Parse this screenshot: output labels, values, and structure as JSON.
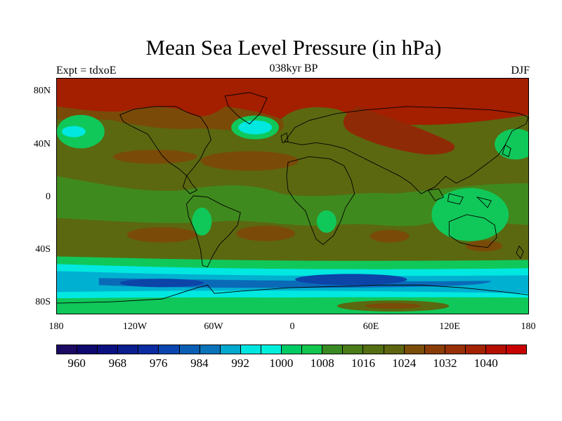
{
  "title": "Mean Sea Level Pressure (in hPa)",
  "left_label": "Expt = tdxoE",
  "center_label": "038kyr BP",
  "right_label": "DJF",
  "y_ticks": [
    "80N",
    "40N",
    "0",
    "40S",
    "80S"
  ],
  "x_ticks": [
    "180",
    "120W",
    "60W",
    "0",
    "60E",
    "120E",
    "180"
  ],
  "colorbar": {
    "colors": [
      "#1d0a63",
      "#0e086f",
      "#0b1080",
      "#0a1d8f",
      "#0a2ba2",
      "#0b46b0",
      "#0a5fb5",
      "#0a73b9",
      "#00a9cf",
      "#00e5df",
      "#00f0dc",
      "#00cc66",
      "#13c64f",
      "#3a8a24",
      "#4a7c19",
      "#546f13",
      "#5d6510",
      "#7a4e08",
      "#8a3c06",
      "#973006",
      "#a32200",
      "#b50f00",
      "#c80000"
    ],
    "labels": [
      "960",
      "968",
      "976",
      "984",
      "992",
      "1000",
      "1008",
      "1016",
      "1024",
      "1032",
      "1040"
    ]
  },
  "colors": {
    "high": "#a41e00",
    "highdark": "#8f2a06",
    "brown": "#7a4a08",
    "olive": "#5b6810",
    "green": "#3f8a1e",
    "lightgreen": "#10c85a",
    "cyan": "#00e8e0",
    "teal": "#00b0d0",
    "blue": "#0a6ab8",
    "deepblue": "#0c44a8"
  }
}
